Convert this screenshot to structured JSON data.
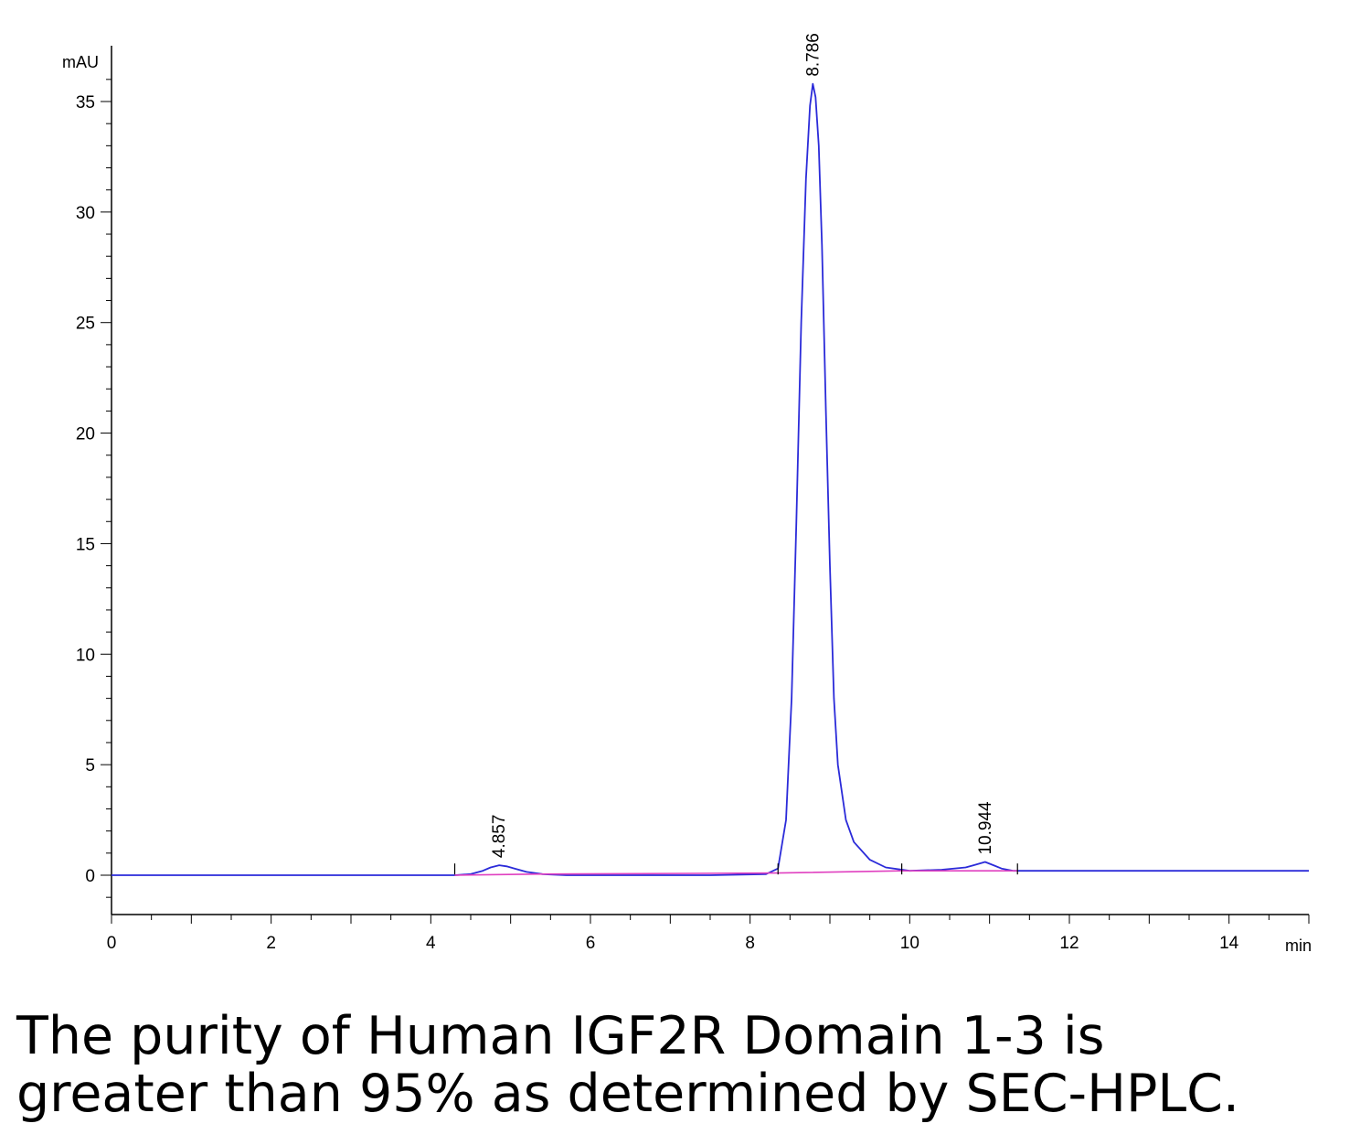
{
  "chart_data": {
    "type": "line",
    "ylabel": "mAU",
    "xlabel": "min",
    "xlim": [
      0,
      15
    ],
    "ylim": [
      -1.8,
      37
    ],
    "x_ticks": [
      0,
      2,
      4,
      6,
      8,
      10,
      12,
      14
    ],
    "y_ticks": [
      0,
      5,
      10,
      15,
      20,
      25,
      30,
      35
    ],
    "series": [
      {
        "color": "#2b2bd9",
        "x": [
          0,
          4.3,
          4.5,
          4.65,
          4.75,
          4.857,
          4.95,
          5.05,
          5.2,
          5.4,
          5.7,
          6.5,
          7.5,
          8.2,
          8.35,
          8.45,
          8.52,
          8.58,
          8.64,
          8.7,
          8.75,
          8.786,
          8.82,
          8.86,
          8.9,
          8.95,
          9.0,
          9.05,
          9.1,
          9.2,
          9.3,
          9.5,
          9.7,
          10.0,
          10.4,
          10.7,
          10.8,
          10.944,
          11.05,
          11.15,
          11.3,
          11.6,
          13,
          15
        ],
        "y": [
          0.0,
          0.0,
          0.05,
          0.2,
          0.35,
          0.45,
          0.4,
          0.3,
          0.15,
          0.05,
          0.0,
          0.0,
          0.0,
          0.05,
          0.3,
          2.5,
          8.0,
          16.0,
          25.0,
          31.5,
          34.8,
          35.8,
          35.2,
          33.0,
          28.5,
          21.0,
          14.0,
          8.0,
          5.0,
          2.5,
          1.5,
          0.7,
          0.35,
          0.2,
          0.25,
          0.35,
          0.45,
          0.6,
          0.45,
          0.3,
          0.2,
          0.2,
          0.2,
          0.2
        ]
      },
      {
        "color": "#e040c0",
        "x": [
          4.3,
          5.3,
          8.35,
          9.9,
          10.5,
          11.35
        ],
        "y": [
          0.0,
          0.05,
          0.1,
          0.2,
          0.2,
          0.2
        ]
      }
    ],
    "peaks": [
      {
        "x": 4.857,
        "y": 0.45,
        "label": "4.857"
      },
      {
        "x": 8.786,
        "y": 35.8,
        "label": "8.786"
      },
      {
        "x": 10.944,
        "y": 0.6,
        "label": "10.944"
      }
    ]
  },
  "caption": {
    "line1": "The purity of Human IGF2R Domain 1-3 is",
    "line2": "greater than 95% as determined by SEC-HPLC."
  }
}
